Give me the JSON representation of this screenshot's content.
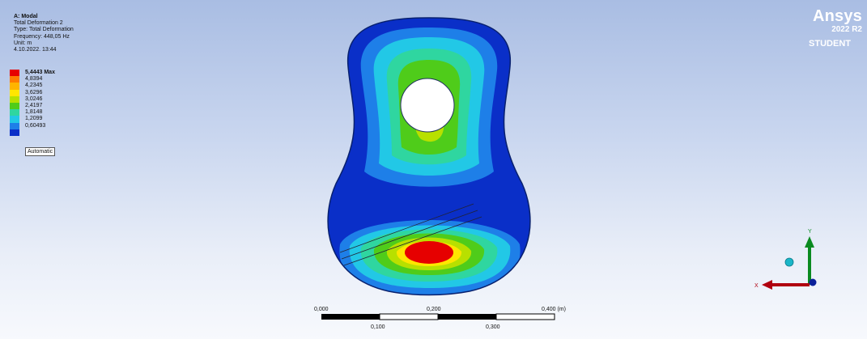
{
  "info": {
    "title": "A: Modal",
    "lines": [
      "Total Deformation 2",
      "Type: Total Deformation",
      "Frequency: 448,05 Hz",
      "Unit: m",
      "4.10.2022. 13:44"
    ]
  },
  "legend": {
    "entries": [
      {
        "label": "5,4443 Max",
        "color": "#e60000"
      },
      {
        "label": "4,8394",
        "color": "#ff7a00"
      },
      {
        "label": "4,2345",
        "color": "#ffb400"
      },
      {
        "label": "3,6296",
        "color": "#ffe600"
      },
      {
        "label": "3,0246",
        "color": "#b8e000"
      },
      {
        "label": "2,4197",
        "color": "#4fcc1a"
      },
      {
        "label": "1,8148",
        "color": "#2fd6a0"
      },
      {
        "label": "1,2099",
        "color": "#22c8e6"
      },
      {
        "label": "0,60493",
        "color": "#1e7fe8"
      },
      {
        "label": "",
        "color": "#0a2fc8"
      }
    ],
    "mode": "Automatic"
  },
  "logo": {
    "brand": "Ansys",
    "version": "2022 R2",
    "edition": "STUDENT"
  },
  "scale": {
    "labels_top": [
      "0,000",
      "0,200",
      "0,400 (m)"
    ],
    "labels_bottom": [
      "0,100",
      "0,300"
    ]
  },
  "triad": {
    "x_label": "X",
    "y_label": "Y"
  },
  "colors": {
    "min": "#0a2fc8",
    "max": "#e60000",
    "x_axis": "#b00010",
    "y_axis": "#0a8a20",
    "z_axis": "#0a1f9a"
  }
}
